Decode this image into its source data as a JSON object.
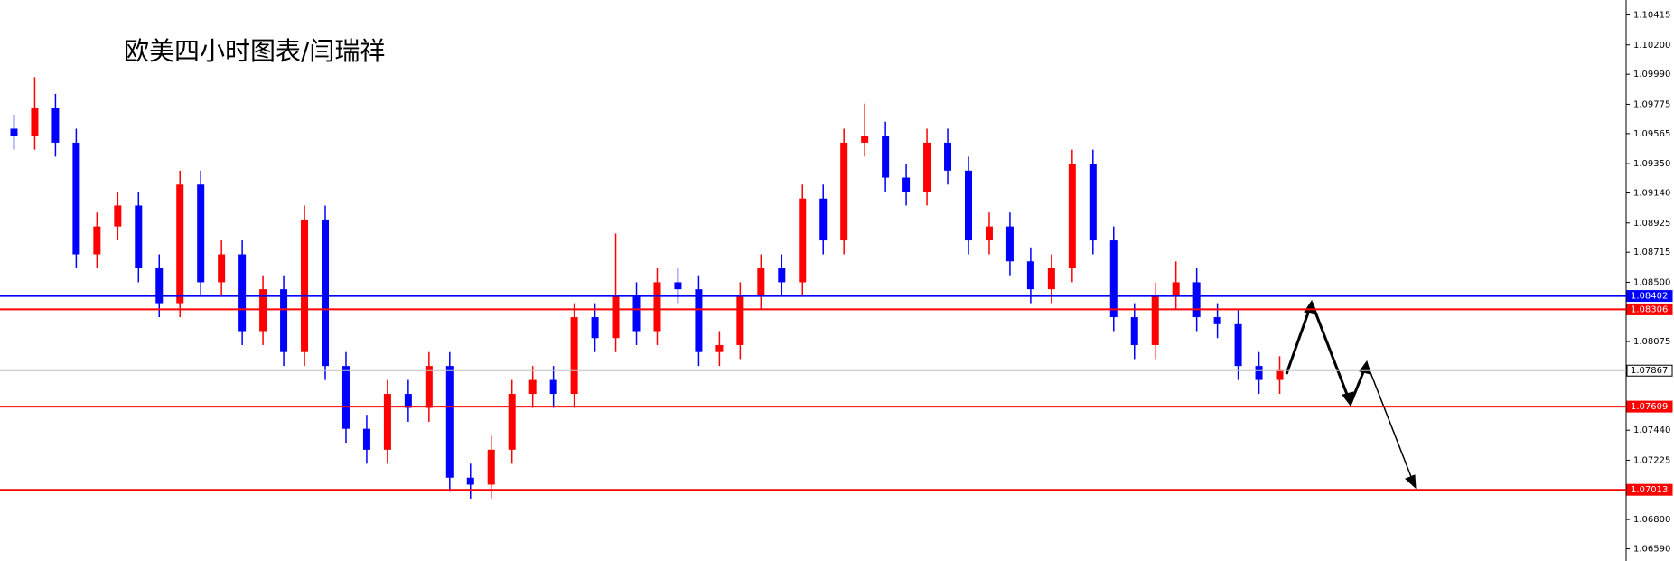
{
  "chart_data": {
    "type": "candlestick",
    "title": "欧美四小时图表/闫瑞祥",
    "ylim": [
      1.06503,
      1.10522
    ],
    "yticks": [
      1.10415,
      {
        "value": 1.102,
        "label": "1.10200"
      },
      {
        "value": 1.0999,
        "label": "1.09990"
      },
      1.09775,
      1.09565,
      {
        "value": 1.0935,
        "label": "1.09350"
      },
      {
        "value": 1.0914,
        "label": "1.09140"
      },
      1.08925,
      1.08715,
      {
        "value": 1.085,
        "label": "1.08500"
      },
      1.08075,
      {
        "value": 1.0744,
        "label": "1.07440"
      },
      1.07225,
      {
        "value": 1.068,
        "label": "1.06800"
      },
      {
        "value": 1.0659,
        "label": "1.06590"
      }
    ],
    "up_color": "#ff0000",
    "down_color": "#0000ff",
    "open": [
      1.096,
      1.0955,
      1.0975,
      1.095,
      1.087,
      1.089,
      1.0905,
      1.086,
      1.0835,
      1.092,
      1.085,
      1.087,
      1.0815,
      1.0845,
      1.08,
      1.0895,
      1.079,
      1.0745,
      1.073,
      1.077,
      1.076,
      1.079,
      1.071,
      1.0705,
      1.073,
      1.077,
      1.078,
      1.077,
      1.0825,
      1.081,
      1.084,
      1.0815,
      1.085,
      1.0845,
      1.08,
      1.0805,
      1.084,
      1.086,
      1.085,
      1.091,
      1.088,
      1.095,
      1.0955,
      1.0925,
      1.0915,
      1.095,
      1.093,
      1.088,
      1.089,
      1.0865,
      1.0845,
      1.086,
      1.0935,
      1.088,
      1.0825,
      1.0805,
      1.084,
      1.085,
      1.0825,
      1.082,
      1.079,
      1.078
    ],
    "high": [
      1.097,
      1.0997,
      1.0985,
      1.096,
      1.09,
      1.0915,
      1.0915,
      1.087,
      1.093,
      1.093,
      1.088,
      1.088,
      1.0855,
      1.0855,
      1.0905,
      1.0905,
      1.08,
      1.0755,
      1.078,
      1.078,
      1.08,
      1.08,
      1.072,
      1.074,
      1.078,
      1.079,
      1.079,
      1.0835,
      1.0835,
      1.0885,
      1.085,
      1.086,
      1.086,
      1.0855,
      1.0815,
      1.085,
      1.087,
      1.087,
      1.092,
      1.092,
      1.096,
      1.0978,
      1.0965,
      1.0935,
      1.096,
      1.096,
      1.094,
      1.09,
      1.09,
      1.0875,
      1.087,
      1.0945,
      1.0945,
      1.089,
      1.0835,
      1.085,
      1.0865,
      1.086,
      1.0835,
      1.083,
      1.08,
      1.0797
    ],
    "low": [
      1.0945,
      1.0945,
      1.094,
      1.086,
      1.086,
      1.088,
      1.085,
      1.0825,
      1.0825,
      1.084,
      1.084,
      1.0805,
      1.0805,
      1.079,
      1.079,
      1.078,
      1.0735,
      1.072,
      1.072,
      1.075,
      1.075,
      1.07,
      1.0695,
      1.0695,
      1.072,
      1.076,
      1.076,
      1.076,
      1.08,
      1.08,
      1.0805,
      1.0805,
      1.0835,
      1.079,
      1.079,
      1.0795,
      1.083,
      1.084,
      1.084,
      1.087,
      1.087,
      1.094,
      1.0915,
      1.0905,
      1.0905,
      1.092,
      1.087,
      1.087,
      1.0855,
      1.0835,
      1.0835,
      1.085,
      1.087,
      1.0815,
      1.0795,
      1.0795,
      1.083,
      1.0815,
      1.081,
      1.078,
      1.077,
      1.077
    ],
    "close": [
      1.0955,
      1.0975,
      1.095,
      1.087,
      1.089,
      1.0905,
      1.086,
      1.0835,
      1.092,
      1.085,
      1.087,
      1.0815,
      1.0845,
      1.08,
      1.0895,
      1.079,
      1.0745,
      1.073,
      1.077,
      1.076,
      1.079,
      1.071,
      1.0705,
      1.073,
      1.077,
      1.078,
      1.077,
      1.0825,
      1.081,
      1.084,
      1.0815,
      1.085,
      1.0845,
      1.08,
      1.0805,
      1.084,
      1.086,
      1.085,
      1.091,
      1.088,
      1.095,
      1.0955,
      1.0925,
      1.0915,
      1.095,
      1.093,
      1.088,
      1.089,
      1.0865,
      1.0845,
      1.086,
      1.0935,
      1.088,
      1.0825,
      1.0805,
      1.084,
      1.085,
      1.0825,
      1.082,
      1.079,
      1.078,
      1.0787
    ],
    "levels": [
      {
        "value": 1.08402,
        "color": "#0000ff"
      },
      {
        "value": 1.08306,
        "color": "#ff0000"
      },
      {
        "value": 1.07867,
        "color": "#c0c0c0"
      },
      {
        "value": 1.07609,
        "color": "#ff0000"
      },
      {
        "value": 1.07013,
        "color": "#ff0000"
      }
    ]
  }
}
